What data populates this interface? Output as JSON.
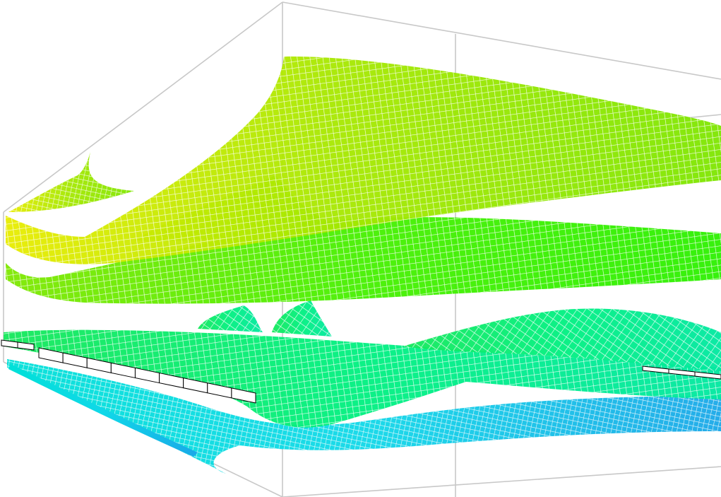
{
  "scene": {
    "background": "#ffffff",
    "frame_color": "#c8c8c8",
    "segment_fill": "#ffffff",
    "segment_stroke": "#000000",
    "surfaces": [
      {
        "name": "yellow-green-surface",
        "colors": [
          "#e8ec00",
          "#a8e800",
          "#7ee600"
        ]
      },
      {
        "name": "green-surface",
        "colors": [
          "#7fe800",
          "#46f000",
          "#2cf000"
        ]
      },
      {
        "name": "lower-green-surface",
        "colors": [
          "#14e85a",
          "#00f080",
          "#00e8a0"
        ]
      },
      {
        "name": "cyan-surface",
        "colors": [
          "#00e0d8",
          "#10d8e8",
          "#1aa8e8"
        ]
      }
    ]
  }
}
